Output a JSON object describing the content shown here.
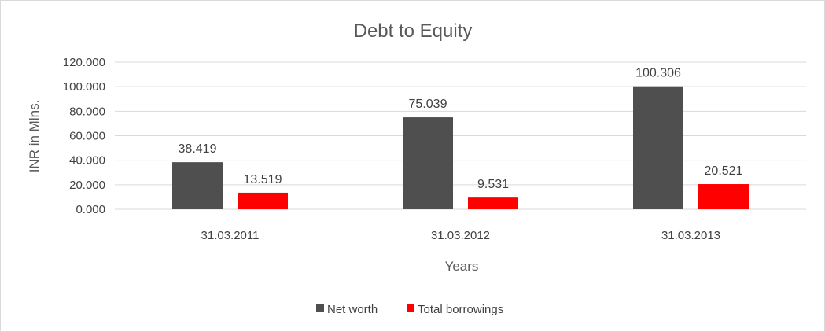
{
  "chart_data": {
    "type": "bar",
    "title": "Debt to Equity",
    "xlabel": "Years",
    "ylabel": "INR in Mlns.",
    "categories": [
      "31.03.2011",
      "31.03.2012",
      "31.03.2013"
    ],
    "series": [
      {
        "name": "Net worth",
        "color": "#4f4f4f",
        "values": [
          38.419,
          75.039,
          100.306
        ],
        "labels": [
          "38.419",
          "75.039",
          "100.306"
        ]
      },
      {
        "name": "Total borrowings",
        "color": "#ff0000",
        "values": [
          13.519,
          9.531,
          20.521
        ],
        "labels": [
          "13.519",
          "9.531",
          "20.521"
        ]
      }
    ],
    "ylim": [
      0,
      120
    ],
    "yticks": [
      0,
      20,
      40,
      60,
      80,
      100,
      120
    ],
    "ytick_labels": [
      "0.000",
      "20.000",
      "40.000",
      "60.000",
      "80.000",
      "100.000",
      "120.000"
    ],
    "grid": true,
    "legend_position": "bottom"
  }
}
